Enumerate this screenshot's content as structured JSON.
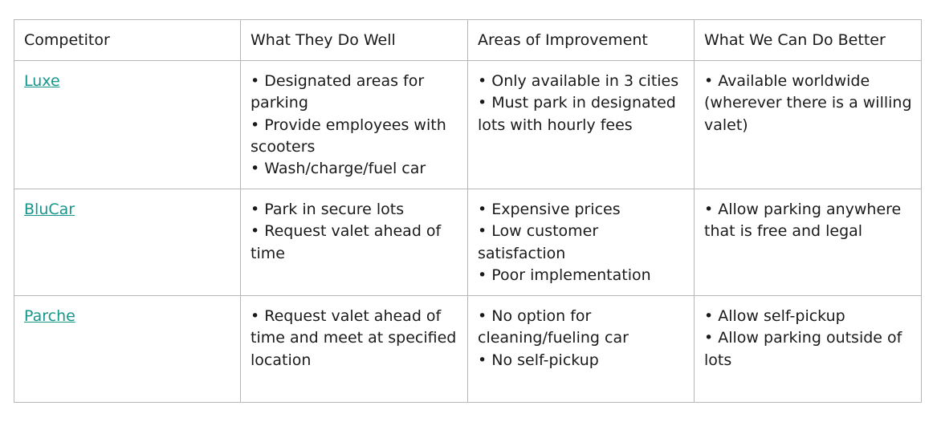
{
  "table": {
    "headers": [
      "Competitor",
      "What They Do Well",
      "Areas of Improvement",
      "What We Can Do Better"
    ],
    "rows": [
      {
        "competitor": "Luxe",
        "strengths": [
          "• Designated areas for parking",
          "• Provide employees with scooters",
          "• Wash/charge/fuel car"
        ],
        "improvements": [
          "• Only available in 3 cities",
          "• Must park in designated lots with hourly fees"
        ],
        "better": [
          "• Available worldwide (wherever there is a willing valet)"
        ]
      },
      {
        "competitor": "BluCar",
        "strengths": [
          "• Park in secure lots",
          "• Request valet ahead of time"
        ],
        "improvements": [
          "• Expensive prices",
          "• Low customer satisfaction",
          "• Poor implementation"
        ],
        "better": [
          "• Allow parking anywhere that is free and legal"
        ]
      },
      {
        "competitor": "Parche",
        "strengths": [
          "• Request valet ahead of time and meet at specified location"
        ],
        "improvements": [
          "• No option for cleaning/fueling car",
          "• No self-pickup"
        ],
        "better": [
          "• Allow self-pickup",
          "• Allow parking outside of lots"
        ]
      }
    ]
  },
  "colors": {
    "link": "#16968a",
    "border": "#b7b7b7",
    "text": "#1a1a1a"
  }
}
